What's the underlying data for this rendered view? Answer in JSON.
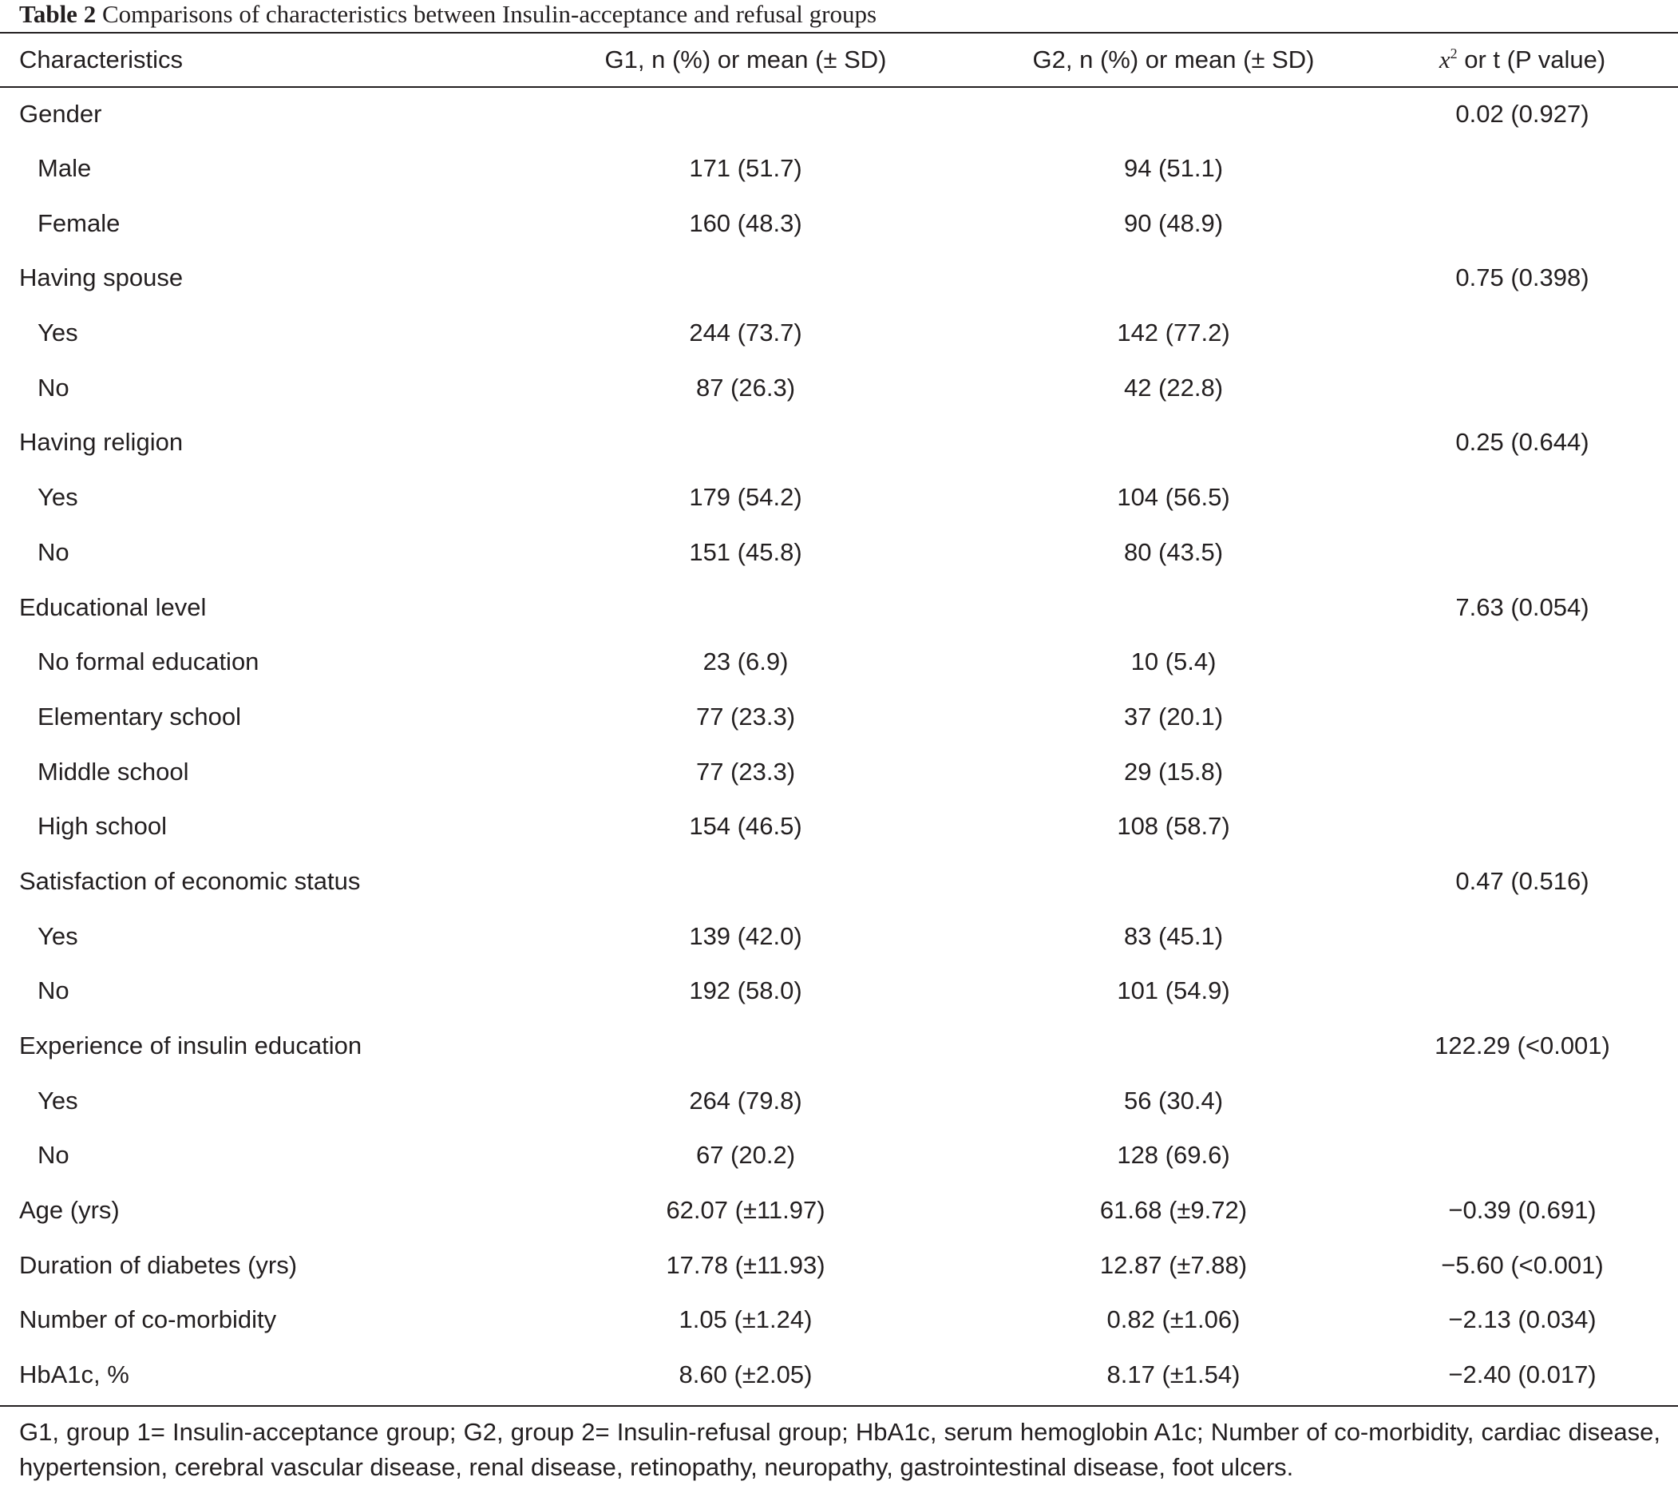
{
  "caption": {
    "label": "Table 2",
    "text": "Comparisons of characteristics between Insulin-acceptance and refusal groups"
  },
  "table": {
    "headers": {
      "characteristics": "Characteristics",
      "g1": "G1, n (%) or mean (± SD)",
      "g2": "G2, n (%) or mean (± SD)",
      "stat_symbol": "x",
      "stat_superscript": "2",
      "stat_rest": "or t (P value)"
    },
    "rows": [
      {
        "label": "Gender",
        "g1": "",
        "g2": "",
        "stat": "0.02 (0.927)",
        "sub": false
      },
      {
        "label": "Male",
        "g1": "171 (51.7)",
        "g2": "94 (51.1)",
        "stat": "",
        "sub": true
      },
      {
        "label": "Female",
        "g1": "160 (48.3)",
        "g2": "90 (48.9)",
        "stat": "",
        "sub": true
      },
      {
        "label": "Having spouse",
        "g1": "",
        "g2": "",
        "stat": "0.75 (0.398)",
        "sub": false
      },
      {
        "label": "Yes",
        "g1": "244 (73.7)",
        "g2": "142 (77.2)",
        "stat": "",
        "sub": true
      },
      {
        "label": "No",
        "g1": "87 (26.3)",
        "g2": "42 (22.8)",
        "stat": "",
        "sub": true
      },
      {
        "label": "Having religion",
        "g1": "",
        "g2": "",
        "stat": "0.25 (0.644)",
        "sub": false
      },
      {
        "label": "Yes",
        "g1": "179 (54.2)",
        "g2": "104 (56.5)",
        "stat": "",
        "sub": true
      },
      {
        "label": "No",
        "g1": "151 (45.8)",
        "g2": "80 (43.5)",
        "stat": "",
        "sub": true
      },
      {
        "label": "Educational level",
        "g1": "",
        "g2": "",
        "stat": "7.63 (0.054)",
        "sub": false
      },
      {
        "label": "No formal education",
        "g1": "23 (6.9)",
        "g2": "10 (5.4)",
        "stat": "",
        "sub": true
      },
      {
        "label": "Elementary school",
        "g1": "77 (23.3)",
        "g2": "37 (20.1)",
        "stat": "",
        "sub": true
      },
      {
        "label": "Middle school",
        "g1": "77 (23.3)",
        "g2": "29 (15.8)",
        "stat": "",
        "sub": true
      },
      {
        "label": "High school",
        "g1": "154 (46.5)",
        "g2": "108 (58.7)",
        "stat": "",
        "sub": true
      },
      {
        "label": "Satisfaction of economic status",
        "g1": "",
        "g2": "",
        "stat": "0.47 (0.516)",
        "sub": false
      },
      {
        "label": "Yes",
        "g1": "139 (42.0)",
        "g2": "83 (45.1)",
        "stat": "",
        "sub": true
      },
      {
        "label": "No",
        "g1": "192 (58.0)",
        "g2": "101 (54.9)",
        "stat": "",
        "sub": true
      },
      {
        "label": "Experience of insulin education",
        "g1": "",
        "g2": "",
        "stat": "122.29 (<0.001)",
        "sub": false
      },
      {
        "label": "Yes",
        "g1": "264 (79.8)",
        "g2": "56 (30.4)",
        "stat": "",
        "sub": true
      },
      {
        "label": "No",
        "g1": "67 (20.2)",
        "g2": "128 (69.6)",
        "stat": "",
        "sub": true
      },
      {
        "label": "Age (yrs)",
        "g1": "62.07 (±11.97)",
        "g2": "61.68 (±9.72)",
        "stat": "−0.39 (0.691)",
        "sub": false
      },
      {
        "label": "Duration of diabetes (yrs)",
        "g1": "17.78 (±11.93)",
        "g2": "12.87 (±7.88)",
        "stat": "−5.60 (<0.001)",
        "sub": false
      },
      {
        "label": "Number of co-morbidity",
        "g1": "1.05 (±1.24)",
        "g2": "0.82 (±1.06)",
        "stat": "−2.13 (0.034)",
        "sub": false
      },
      {
        "label": "HbA1c, %",
        "g1": "8.60 (±2.05)",
        "g2": "8.17 (±1.54)",
        "stat": "−2.40 (0.017)",
        "sub": false
      }
    ]
  },
  "footnote": "G1, group 1= Insulin-acceptance group; G2, group 2= Insulin-refusal group; HbA1c, serum hemoglobin A1c; Number of co-morbidity, cardiac disease, hypertension, cerebral vascular disease, renal disease, retinopathy, neuropathy, gastrointestinal disease, foot ulcers."
}
